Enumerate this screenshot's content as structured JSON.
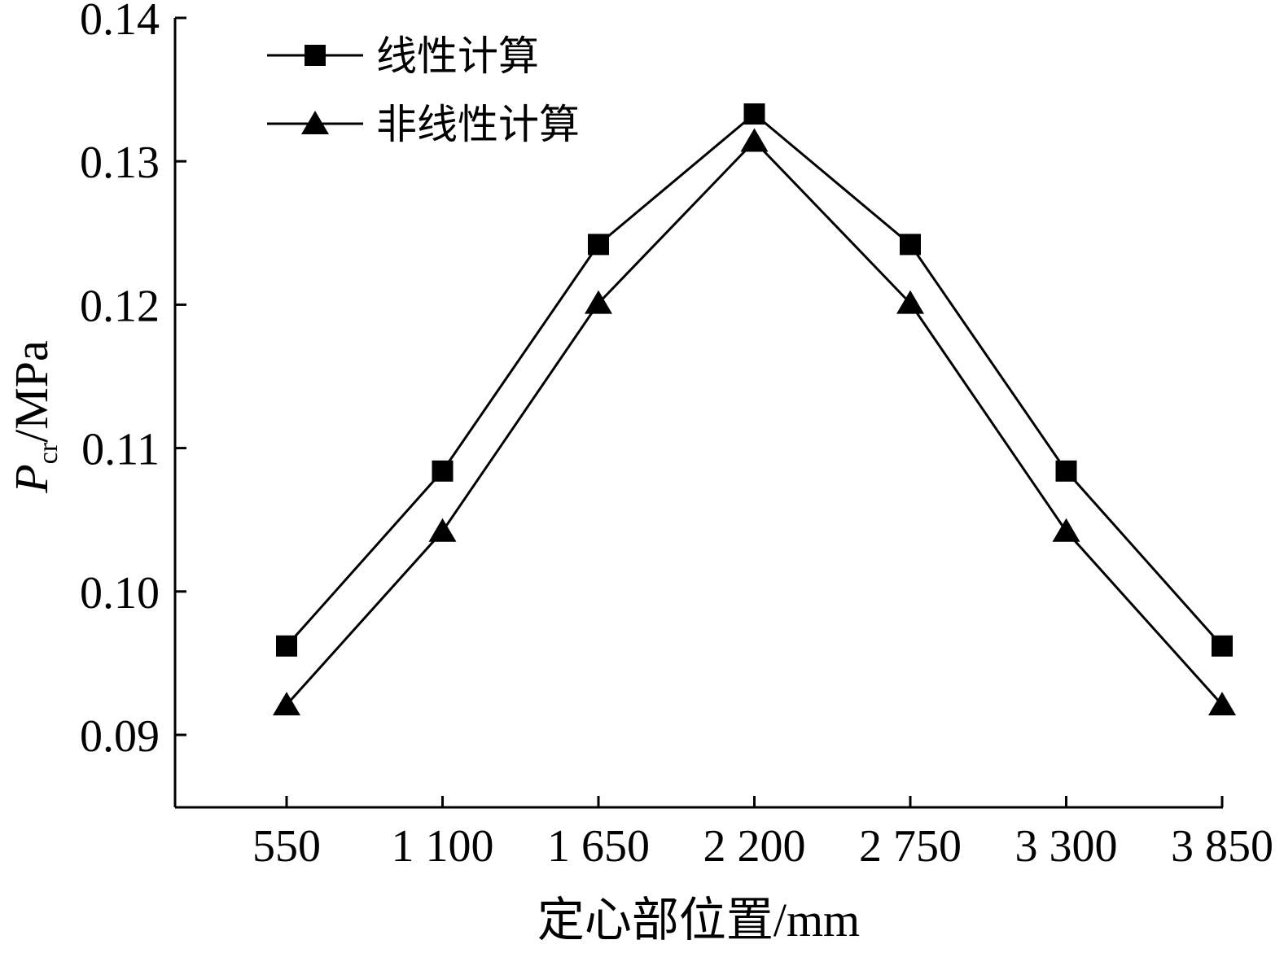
{
  "chart_data": {
    "type": "line",
    "xlabel": "定心部位置/mm",
    "ylabel": {
      "symbol": "P",
      "subscript": "cr",
      "unit": "/MPa"
    },
    "categories": [
      "550",
      "1 100",
      "1 650",
      "2 200",
      "2 750",
      "3 300",
      "3 850"
    ],
    "x": [
      550,
      1100,
      1650,
      2200,
      2750,
      3300,
      3850
    ],
    "ylim": [
      0.085,
      0.14
    ],
    "yticks": [
      "0.09",
      "0.10",
      "0.11",
      "0.12",
      "0.13",
      "0.14"
    ],
    "ytick_values": [
      0.09,
      0.1,
      0.11,
      0.12,
      0.13,
      0.14
    ],
    "grid": false,
    "legend_position": "top-left",
    "series": [
      {
        "name": "线性计算",
        "marker": "square",
        "color": "#000000",
        "values": [
          0.0962,
          0.1084,
          0.1242,
          0.1333,
          0.1242,
          0.1084,
          0.0962
        ]
      },
      {
        "name": "非线性计算",
        "marker": "triangle",
        "color": "#000000",
        "values": [
          0.0921,
          0.1042,
          0.1201,
          0.1314,
          0.1201,
          0.1042,
          0.0921
        ]
      }
    ]
  }
}
